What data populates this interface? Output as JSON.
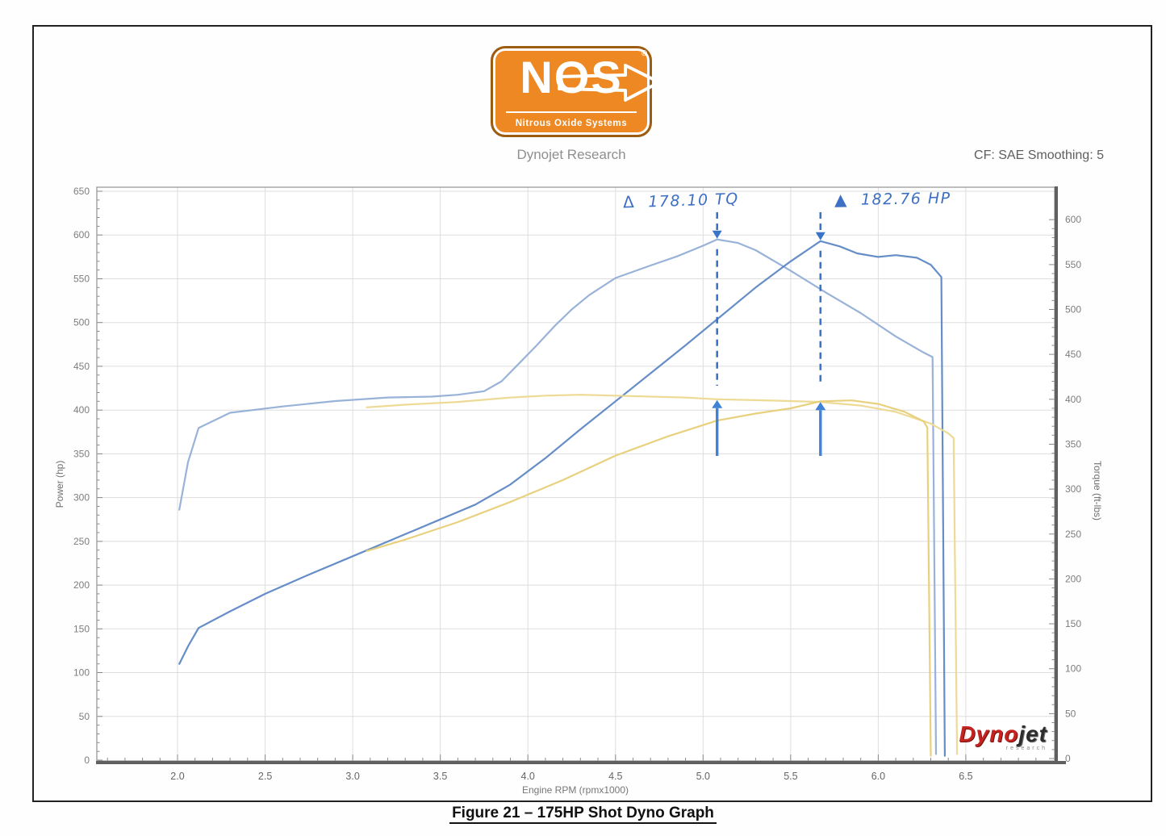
{
  "header": {
    "brand": "NOS",
    "brand_reg": "®",
    "brand_tagline": "Nitrous Oxide Systems",
    "subtitle": "Dynojet Research",
    "cf_label": "CF: SAE Smoothing: 5"
  },
  "watermark": {
    "text_red": "Dyno",
    "text_dark": "jet",
    "sub": "research"
  },
  "caption": "Figure 21 – 175HP Shot Dyno Graph",
  "chart_data": {
    "type": "line",
    "xlabel": "Engine RPM (rpmx1000)",
    "ylabel_left": "Power (hp)",
    "ylabel_right": "Torque (ft-lbs)",
    "x_ticks": [
      "2.0",
      "2.5",
      "3.0",
      "3.5",
      "4.0",
      "4.5",
      "5.0",
      "5.5",
      "6.0",
      "6.5"
    ],
    "y_left": {
      "min": 0,
      "max": 650,
      "step": 50
    },
    "y_right": {
      "min": 0,
      "max": 600,
      "step": 50
    },
    "y_left_labels": [
      "0",
      "50",
      "100",
      "150",
      "200",
      "250",
      "300",
      "350",
      "400",
      "450",
      "500",
      "550",
      "600",
      "650"
    ],
    "y_right_labels": [
      "0",
      "50",
      "100",
      "150",
      "200",
      "250",
      "300",
      "350",
      "400",
      "450",
      "500",
      "550",
      "600"
    ],
    "grid": true,
    "legend": "none",
    "series": [
      {
        "name": "torque-nitrous-175hp-shot",
        "axis": "right",
        "color": "#93aed6",
        "points": [
          [
            2.01,
            277
          ],
          [
            2.06,
            330
          ],
          [
            2.12,
            368
          ],
          [
            2.3,
            385
          ],
          [
            2.6,
            392
          ],
          [
            2.9,
            398
          ],
          [
            3.2,
            402
          ],
          [
            3.45,
            403
          ],
          [
            3.6,
            405
          ],
          [
            3.75,
            409
          ],
          [
            3.85,
            420
          ],
          [
            3.95,
            440
          ],
          [
            4.05,
            460
          ],
          [
            4.15,
            481
          ],
          [
            4.25,
            500
          ],
          [
            4.35,
            516
          ],
          [
            4.5,
            535
          ],
          [
            4.7,
            549
          ],
          [
            4.85,
            559
          ],
          [
            5.0,
            571
          ],
          [
            5.08,
            578
          ],
          [
            5.2,
            574
          ],
          [
            5.3,
            566
          ],
          [
            5.5,
            543
          ],
          [
            5.7,
            519
          ],
          [
            5.9,
            496
          ],
          [
            6.1,
            470
          ],
          [
            6.25,
            453
          ],
          [
            6.31,
            447
          ],
          [
            6.33,
            5
          ]
        ]
      },
      {
        "name": "power-nitrous-175hp-shot",
        "axis": "left",
        "color": "#5d87c4",
        "points": [
          [
            2.01,
            110
          ],
          [
            2.06,
            130
          ],
          [
            2.12,
            151
          ],
          [
            2.3,
            170
          ],
          [
            2.5,
            190
          ],
          [
            2.75,
            212
          ],
          [
            3.0,
            233
          ],
          [
            3.25,
            254
          ],
          [
            3.5,
            275
          ],
          [
            3.7,
            292
          ],
          [
            3.9,
            315
          ],
          [
            4.1,
            345
          ],
          [
            4.3,
            378
          ],
          [
            4.5,
            410
          ],
          [
            4.7,
            442
          ],
          [
            4.9,
            474
          ],
          [
            5.1,
            507
          ],
          [
            5.3,
            540
          ],
          [
            5.5,
            570
          ],
          [
            5.67,
            593
          ],
          [
            5.78,
            587
          ],
          [
            5.88,
            579
          ],
          [
            6.0,
            575
          ],
          [
            6.1,
            577
          ],
          [
            6.22,
            574
          ],
          [
            6.3,
            566
          ],
          [
            6.36,
            552
          ],
          [
            6.38,
            5
          ]
        ]
      },
      {
        "name": "torque-baseline",
        "axis": "right",
        "color": "#ecd88f",
        "points": [
          [
            3.08,
            391
          ],
          [
            3.3,
            394
          ],
          [
            3.6,
            397
          ],
          [
            3.9,
            402
          ],
          [
            4.1,
            404
          ],
          [
            4.3,
            405
          ],
          [
            4.5,
            404
          ],
          [
            4.7,
            403
          ],
          [
            4.9,
            402
          ],
          [
            5.08,
            400
          ],
          [
            5.3,
            399
          ],
          [
            5.5,
            398
          ],
          [
            5.67,
            397
          ],
          [
            5.9,
            393
          ],
          [
            6.1,
            386
          ],
          [
            6.3,
            373
          ],
          [
            6.4,
            362
          ],
          [
            6.43,
            357
          ],
          [
            6.45,
            5
          ]
        ]
      },
      {
        "name": "power-baseline",
        "axis": "left",
        "color": "#e7cf77",
        "points": [
          [
            3.08,
            239
          ],
          [
            3.3,
            252
          ],
          [
            3.6,
            272
          ],
          [
            3.9,
            295
          ],
          [
            4.2,
            320
          ],
          [
            4.5,
            348
          ],
          [
            4.8,
            370
          ],
          [
            5.08,
            388
          ],
          [
            5.3,
            396
          ],
          [
            5.5,
            402
          ],
          [
            5.67,
            410
          ],
          [
            5.85,
            411
          ],
          [
            6.0,
            407
          ],
          [
            6.15,
            398
          ],
          [
            6.26,
            387
          ],
          [
            6.28,
            380
          ],
          [
            6.3,
            5
          ]
        ]
      }
    ],
    "annotations": [
      {
        "symbol": "Δ",
        "label": "178.10 TQ",
        "rpm": 5.08,
        "top": {
          "axis": "right",
          "value": 578
        },
        "bottom": {
          "axis": "right",
          "value": 400
        },
        "dash_color": "#3a74c9",
        "solid_color": "#3f82d8"
      },
      {
        "symbol": "▲",
        "label": "182.76 HP",
        "rpm": 5.67,
        "top": {
          "axis": "left",
          "value": 593
        },
        "bottom": {
          "axis": "left",
          "value": 410
        },
        "dash_color": "#3a74c9",
        "solid_color": "#3f82d8"
      }
    ]
  }
}
